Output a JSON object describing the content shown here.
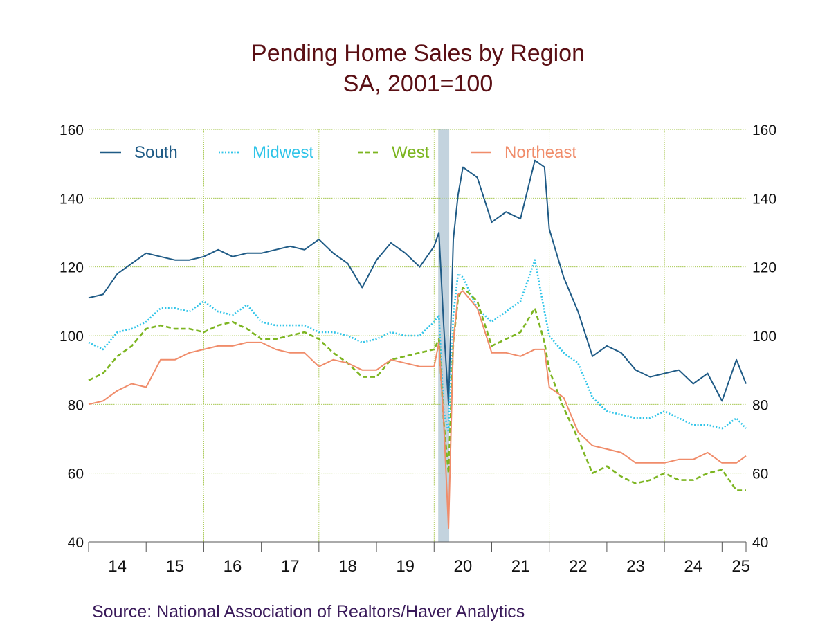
{
  "chart_data": {
    "type": "line",
    "title": "Pending Home Sales by Region",
    "subtitle": "SA, 2001=100",
    "xlabel": "",
    "ylabel": "",
    "x_tick_labels": [
      "14",
      "15",
      "16",
      "17",
      "18",
      "19",
      "20",
      "21",
      "22",
      "23",
      "24",
      "25"
    ],
    "y_ticks": [
      40,
      60,
      80,
      100,
      120,
      140,
      160
    ],
    "ylim": [
      40,
      160
    ],
    "xlim": [
      "2014-01",
      "2025-06"
    ],
    "grid": true,
    "legend": "top-left, inside plot",
    "recession_shading": [
      "2020-02",
      "2020-04"
    ],
    "x": [
      "2014-01",
      "2014-04",
      "2014-07",
      "2014-10",
      "2015-01",
      "2015-04",
      "2015-07",
      "2015-10",
      "2016-01",
      "2016-04",
      "2016-07",
      "2016-10",
      "2017-01",
      "2017-04",
      "2017-07",
      "2017-10",
      "2018-01",
      "2018-04",
      "2018-07",
      "2018-10",
      "2019-01",
      "2019-04",
      "2019-07",
      "2019-10",
      "2020-01",
      "2020-02",
      "2020-03",
      "2020-04",
      "2020-05",
      "2020-06",
      "2020-07",
      "2020-10",
      "2021-01",
      "2021-04",
      "2021-07",
      "2021-10",
      "2021-12",
      "2022-01",
      "2022-04",
      "2022-07",
      "2022-10",
      "2023-01",
      "2023-04",
      "2023-07",
      "2023-10",
      "2024-01",
      "2024-04",
      "2024-07",
      "2024-10",
      "2025-01",
      "2025-04",
      "2025-06"
    ],
    "series": [
      {
        "name": "South",
        "color": "#1f5b86",
        "dash": "solid",
        "values": [
          111,
          112,
          118,
          121,
          124,
          123,
          122,
          122,
          123,
          125,
          123,
          124,
          124,
          125,
          126,
          125,
          128,
          124,
          121,
          114,
          122,
          127,
          124,
          120,
          126,
          130,
          103,
          80,
          128,
          141,
          149,
          146,
          133,
          136,
          134,
          151,
          149,
          131,
          117,
          107,
          94,
          97,
          95,
          90,
          88,
          89,
          90,
          86,
          89,
          81,
          93,
          86
        ]
      },
      {
        "name": "Midwest",
        "color": "#2fc4e8",
        "dash": "dotted",
        "values": [
          98,
          96,
          101,
          102,
          104,
          108,
          108,
          107,
          110,
          107,
          106,
          109,
          104,
          103,
          103,
          103,
          101,
          101,
          100,
          98,
          99,
          101,
          100,
          100,
          104,
          106,
          78,
          72,
          106,
          118,
          117,
          108,
          104,
          107,
          110,
          122,
          107,
          100,
          95,
          92,
          82,
          78,
          77,
          76,
          76,
          78,
          76,
          74,
          74,
          73,
          76,
          73
        ]
      },
      {
        "name": "West",
        "color": "#7cb520",
        "dash": "dashed",
        "values": [
          87,
          89,
          94,
          97,
          102,
          103,
          102,
          102,
          101,
          103,
          104,
          102,
          99,
          99,
          100,
          101,
          99,
          95,
          92,
          88,
          88,
          93,
          94,
          95,
          96,
          99,
          75,
          60,
          98,
          111,
          114,
          110,
          97,
          99,
          101,
          108,
          98,
          90,
          79,
          70,
          60,
          62,
          59,
          57,
          58,
          60,
          58,
          58,
          60,
          61,
          55,
          55
        ]
      },
      {
        "name": "Northeast",
        "color": "#f08c6a",
        "dash": "solid",
        "values": [
          80,
          81,
          84,
          86,
          85,
          93,
          93,
          95,
          96,
          97,
          97,
          98,
          98,
          96,
          95,
          95,
          91,
          93,
          92,
          90,
          90,
          93,
          92,
          91,
          91,
          98,
          75,
          44,
          98,
          112,
          113,
          108,
          95,
          95,
          94,
          96,
          96,
          85,
          82,
          72,
          68,
          67,
          66,
          63,
          63,
          63,
          64,
          64,
          66,
          63,
          63,
          65
        ]
      }
    ]
  },
  "source": "Source:  National Association of Realtors/Haver Analytics"
}
